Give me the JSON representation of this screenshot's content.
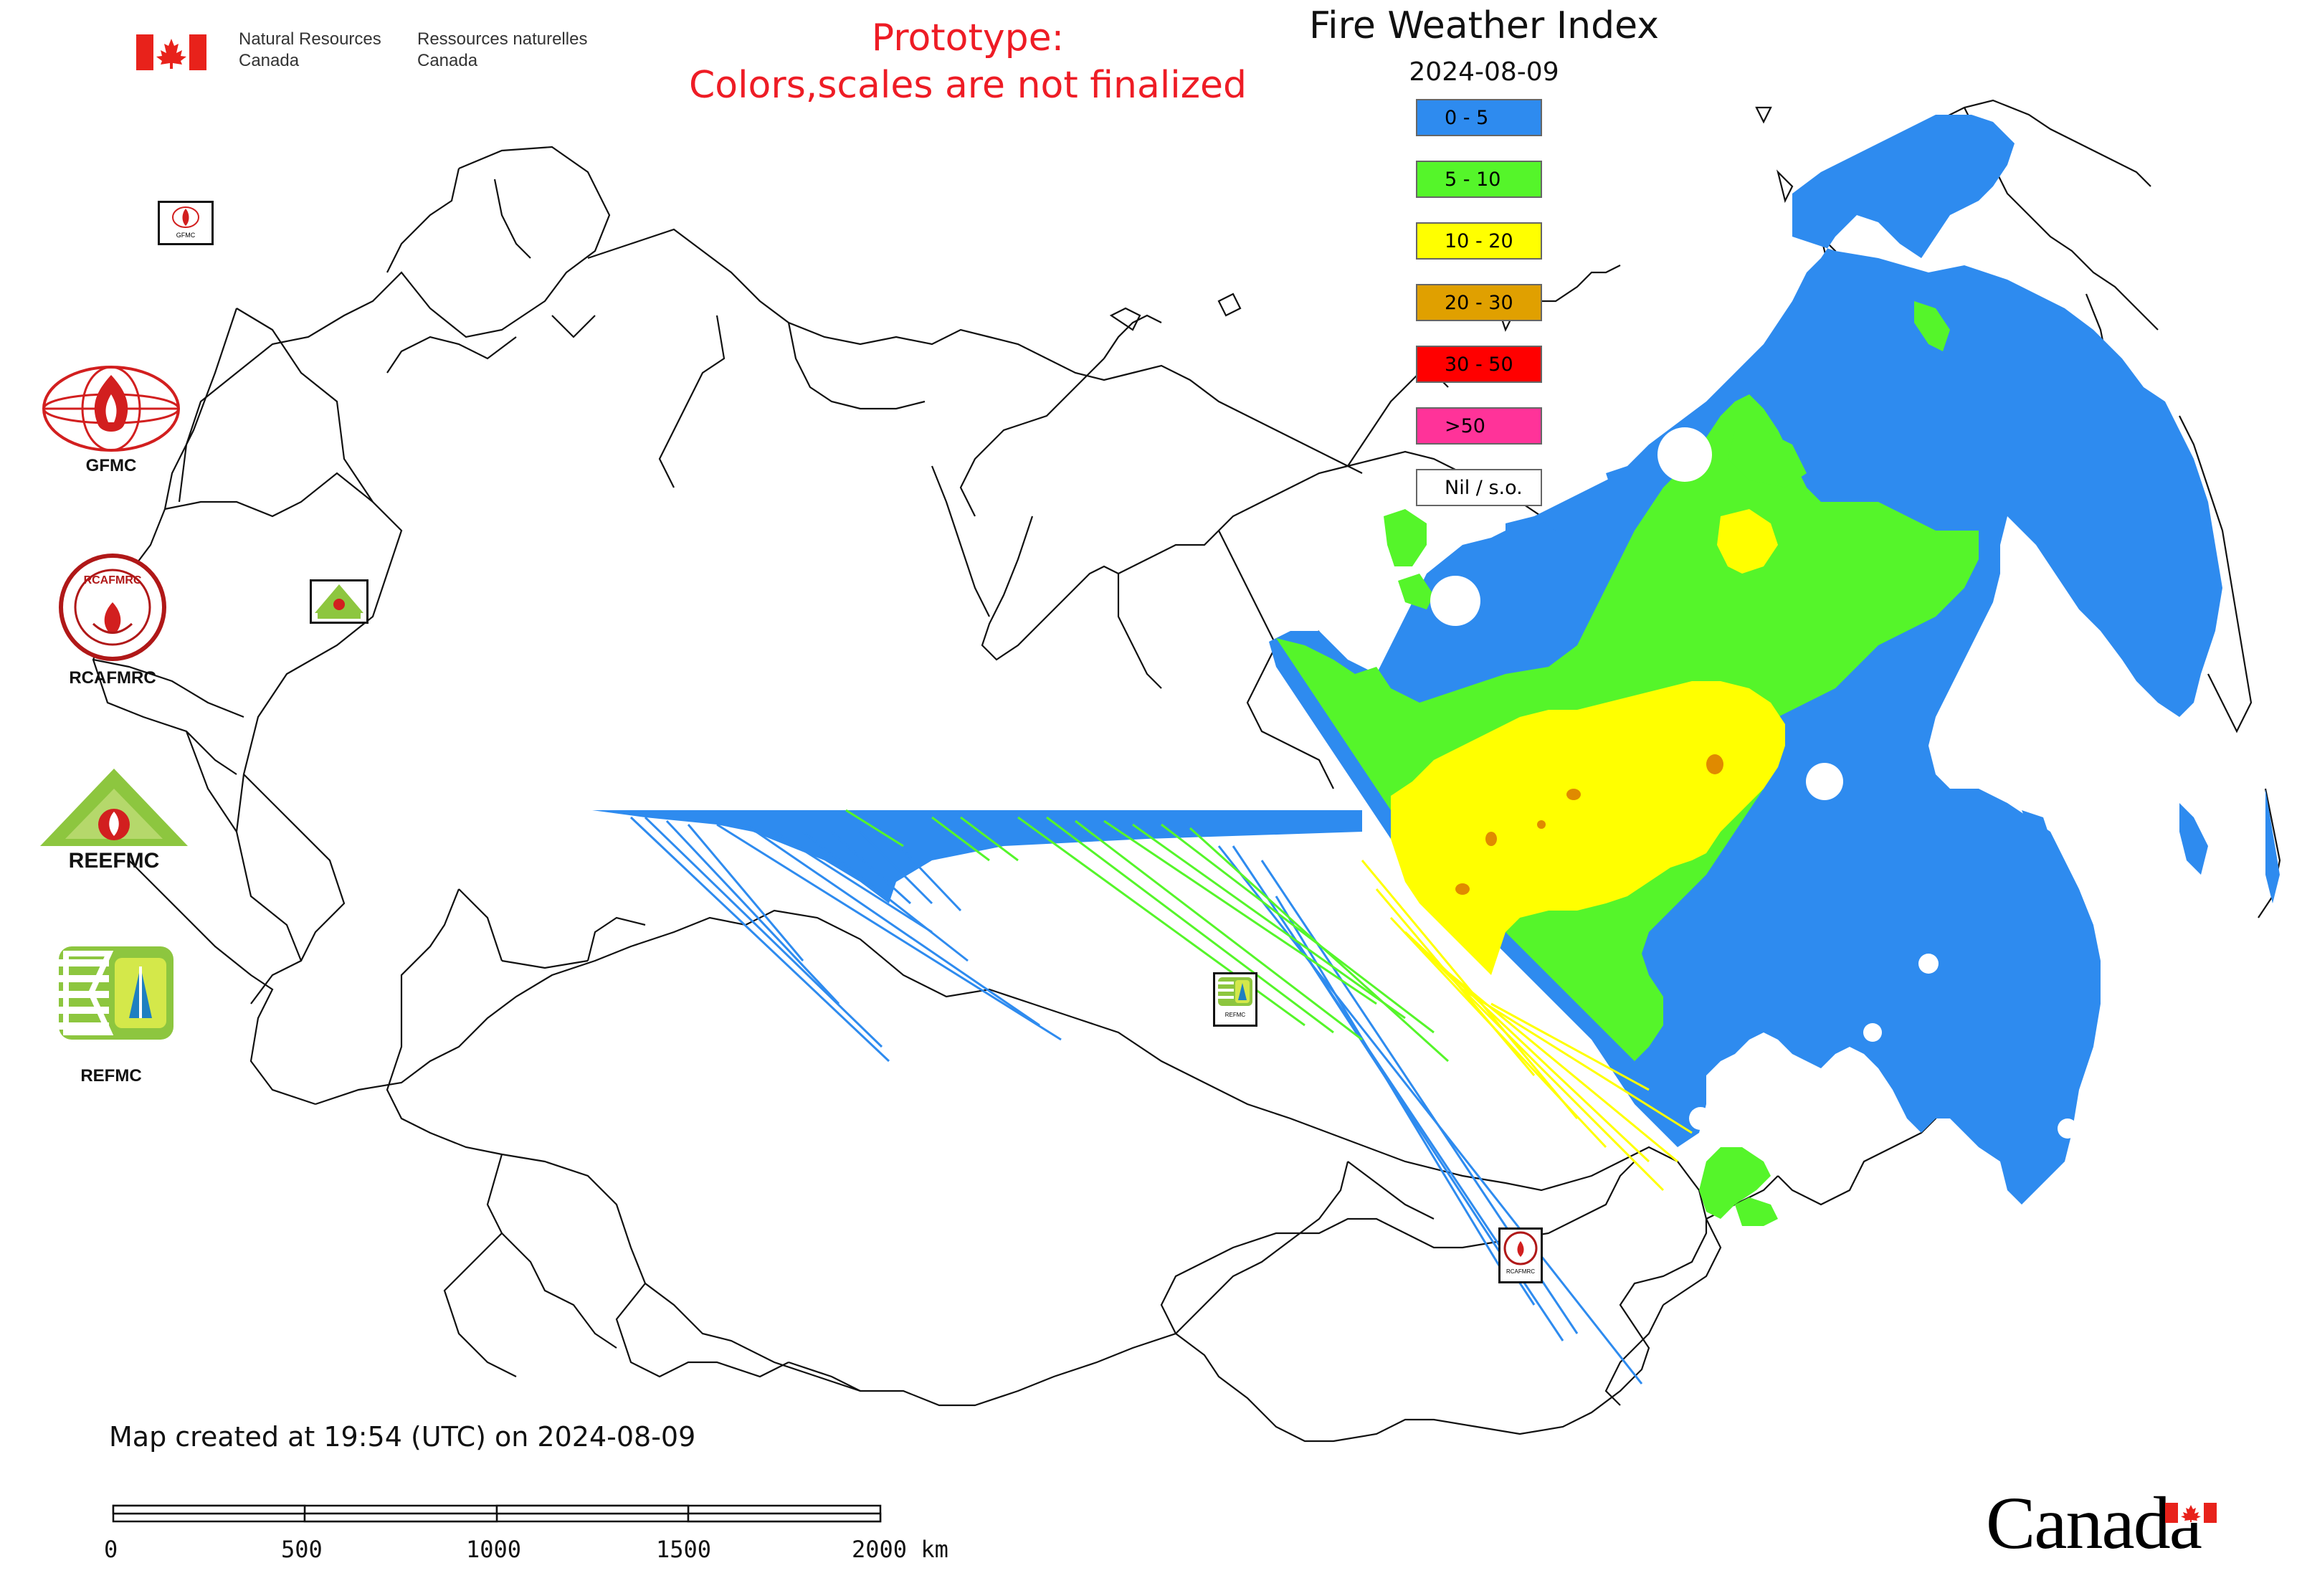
{
  "header": {
    "dept_en_line1": "Natural Resources",
    "dept_en_line2": "Canada",
    "dept_fr_line1": "Ressources naturelles",
    "dept_fr_line2": "Canada"
  },
  "prototype_notice": {
    "line1": "Prototype:",
    "line2": "Colors,scales are not finalized",
    "color": "#ee1c25"
  },
  "map": {
    "title": "Fire Weather Index",
    "date": "2024-08-09",
    "created": "Map created at 19:54 (UTC) on 2024-08-09"
  },
  "legend": [
    {
      "label": "0 - 5",
      "color": "#2e8bef"
    },
    {
      "label": "5 - 10",
      "color": "#55f52a"
    },
    {
      "label": "10 - 20",
      "color": "#ffff00"
    },
    {
      "label": "20 - 30",
      "color": "#e0a000"
    },
    {
      "label": "30 - 50",
      "color": "#ff0000"
    },
    {
      "label": ">50",
      "color": "#ff3399"
    },
    {
      "label": "Nil / s.o.",
      "color": "#ffffff"
    }
  ],
  "logos": {
    "gfmc": "GFMC",
    "rcafmrc": "RCAFMRC",
    "reefmc": "REEFMC",
    "refmc": "REFMC",
    "reefmc_text": "REEFMC",
    "rcafmrc_text": "RCAFMRC",
    "gfmc_small": "GFMC",
    "refmc_small": "REFMC",
    "rcafmrc_small": "RCAFMRC"
  },
  "scale_bar": {
    "labels": [
      "0",
      "500",
      "1000",
      "1500",
      "2000 km"
    ]
  },
  "wordmark": "Canada"
}
